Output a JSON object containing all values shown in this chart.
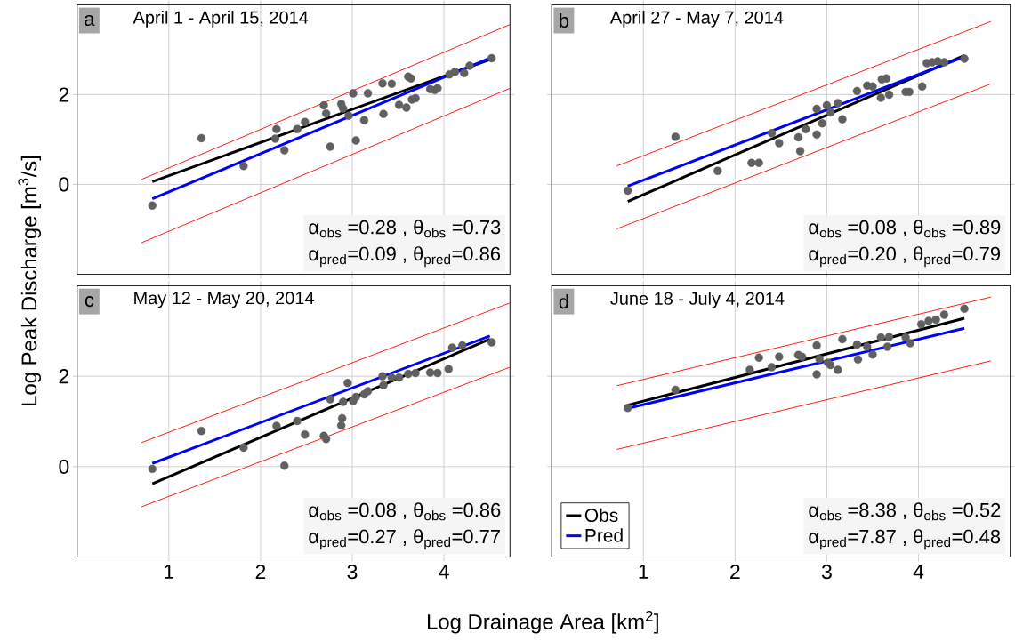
{
  "chart_data": [
    {
      "type": "scatter",
      "title": "April 1 - April 15, 2014",
      "ylabel": "Log Peak Discharge [m$^{3}$/s]",
      "annotations": [
        "a",
        "α$_{obs}$ =0.28 , θ$_{obs}$ =0.73",
        "α$_{pred}$=0.09 , θ$_{pred}$=0.86"
      ],
      "xlim": [
        0,
        4.72
      ],
      "ylim": [
        -2,
        4
      ],
      "xticks": [
        1,
        2,
        3,
        4
      ],
      "yticks": [
        0,
        2
      ],
      "grid": true,
      "tick_labels": "y",
      "series": [
        {
          "color": "#606060",
          "x": [
            0.82,
            1.355,
            1.815,
            2.174,
            2.16,
            2.26,
            2.4,
            2.484,
            2.69,
            2.715,
            2.76,
            2.88,
            2.9,
            2.96,
            3.01,
            3.04,
            3.13,
            3.17,
            3.33,
            3.34,
            3.43,
            3.51,
            3.59,
            3.61,
            3.64,
            3.65,
            3.69,
            3.85,
            3.93,
            3.9,
            4.06,
            4.12,
            4.22,
            4.28,
            4.52
          ],
          "values": [
            -0.47,
            1.03,
            0.41,
            1.23,
            1.02,
            0.76,
            1.23,
            1.39,
            1.76,
            1.58,
            0.84,
            1.79,
            1.69,
            1.53,
            2.03,
            0.98,
            1.43,
            2.03,
            2.25,
            1.57,
            2.24,
            1.77,
            1.71,
            2.4,
            2.36,
            1.89,
            1.92,
            2.12,
            2.14,
            2.1,
            2.45,
            2.51,
            2.48,
            2.64,
            2.81
          ]
        },
        {
          "type": "line",
          "color": "#ff0000",
          "x": [
            0.7,
            4.72
          ],
          "values": [
            0.11,
            3.56
          ]
        },
        {
          "type": "line",
          "color": "#ff0000",
          "x": [
            0.7,
            4.72
          ],
          "values": [
            -1.3,
            2.14
          ]
        },
        {
          "type": "line",
          "color": "#000000",
          "x": [
            0.82,
            4.5
          ],
          "values": [
            0.06,
            2.78
          ]
        },
        {
          "type": "line",
          "color": "#0000ff",
          "x": [
            0.82,
            4.5
          ],
          "values": [
            -0.32,
            2.81
          ]
        }
      ]
    },
    {
      "type": "scatter",
      "title": "April 27 - May 7, 2014",
      "annotations": [
        "b",
        "α$_{obs}$ =0.08 , θ$_{obs}$ =0.89",
        "α$_{pred}$=0.20 , θ$_{pred}$=0.79"
      ],
      "xlim": [
        0,
        5
      ],
      "ylim": [
        -2,
        4
      ],
      "xticks": [
        1,
        2,
        3,
        4
      ],
      "yticks": [
        0,
        2
      ],
      "grid": true,
      "tick_labels": false,
      "series": [
        {
          "color": "#606060",
          "x": [
            0.83,
            1.35,
            1.81,
            2.18,
            2.26,
            2.4,
            2.48,
            2.69,
            2.71,
            2.77,
            2.89,
            2.89,
            2.95,
            3.0,
            3.04,
            3.12,
            3.17,
            3.33,
            3.44,
            3.5,
            3.59,
            3.6,
            3.65,
            3.68,
            3.86,
            3.9,
            4.04,
            4.09,
            4.15,
            4.21,
            4.28,
            4.5
          ],
          "values": [
            -0.14,
            1.06,
            0.3,
            0.48,
            0.48,
            1.14,
            0.92,
            1.05,
            0.74,
            1.23,
            1.11,
            1.68,
            1.36,
            1.76,
            1.6,
            1.81,
            1.45,
            2.08,
            2.2,
            2.18,
            1.93,
            2.34,
            2.36,
            2.0,
            2.06,
            2.06,
            2.18,
            2.7,
            2.72,
            2.74,
            2.72,
            2.8
          ]
        },
        {
          "type": "line",
          "color": "#ff0000",
          "x": [
            0.71,
            4.79
          ],
          "values": [
            0.41,
            3.63
          ]
        },
        {
          "type": "line",
          "color": "#ff0000",
          "x": [
            0.71,
            4.79
          ],
          "values": [
            -0.99,
            2.24
          ]
        },
        {
          "type": "line",
          "color": "#000000",
          "x": [
            0.83,
            4.5
          ],
          "values": [
            -0.38,
            2.87
          ]
        },
        {
          "type": "line",
          "color": "#0000ff",
          "x": [
            0.83,
            4.5
          ],
          "values": [
            -0.04,
            2.84
          ]
        }
      ]
    },
    {
      "type": "scatter",
      "title": "May 12 - May 20, 2014",
      "xlabel": "Log Drainage Area [km$^{2}$]",
      "annotations": [
        "c",
        "α$_{obs}$ =0.08 , θ$_{obs}$ =0.86",
        "α$_{pred}$=0.27 , θ$_{pred}$=0.77"
      ],
      "xlim": [
        0,
        4.72
      ],
      "ylim": [
        -2,
        4
      ],
      "xticks": [
        1,
        2,
        3,
        4
      ],
      "yticks": [
        0,
        2
      ],
      "grid": true,
      "series": [
        {
          "color": "#606060",
          "x": [
            0.82,
            1.355,
            1.815,
            2.174,
            2.26,
            2.4,
            2.484,
            2.69,
            2.715,
            2.76,
            2.88,
            2.89,
            2.9,
            2.95,
            3.01,
            3.04,
            3.13,
            3.17,
            3.33,
            3.34,
            3.43,
            3.51,
            3.61,
            3.69,
            3.85,
            3.93,
            4.05,
            4.09,
            4.2,
            4.52
          ],
          "values": [
            -0.05,
            0.79,
            0.42,
            0.9,
            0.02,
            1.01,
            0.71,
            0.68,
            0.61,
            1.49,
            0.91,
            1.07,
            1.43,
            1.85,
            1.45,
            1.54,
            1.6,
            1.67,
            2.0,
            1.8,
            1.97,
            1.97,
            2.05,
            2.07,
            2.08,
            2.07,
            2.16,
            2.63,
            2.68,
            2.75
          ]
        },
        {
          "type": "line",
          "color": "#ff0000",
          "x": [
            0.7,
            4.72
          ],
          "values": [
            0.53,
            3.62
          ]
        },
        {
          "type": "line",
          "color": "#ff0000",
          "x": [
            0.7,
            4.72
          ],
          "values": [
            -0.89,
            2.2
          ]
        },
        {
          "type": "line",
          "color": "#000000",
          "x": [
            0.82,
            4.5
          ],
          "values": [
            -0.38,
            2.82
          ]
        },
        {
          "type": "line",
          "color": "#0000ff",
          "x": [
            0.82,
            4.5
          ],
          "values": [
            0.07,
            2.89
          ]
        }
      ]
    },
    {
      "type": "scatter",
      "title": "June 18 - July 4, 2014",
      "annotations": [
        "d",
        "α$_{obs}$ =8.38 , θ$_{obs}$ =0.52",
        "α$_{pred}$=7.87 , θ$_{pred}$=0.48"
      ],
      "xlim": [
        0,
        5
      ],
      "ylim": [
        -2,
        4
      ],
      "xticks": [
        1,
        2,
        3,
        4
      ],
      "yticks": [
        0,
        2
      ],
      "grid": true,
      "tick_labels": "x",
      "legend": "bottom left",
      "series": [
        {
          "color": "#606060",
          "x": [
            0.83,
            1.35,
            2.16,
            2.26,
            2.4,
            2.48,
            2.69,
            2.73,
            2.89,
            2.89,
            2.92,
            3.01,
            3.04,
            3.12,
            3.17,
            3.33,
            3.34,
            3.44,
            3.5,
            3.59,
            3.66,
            3.68,
            3.86,
            3.91,
            4.03,
            4.11,
            4.19,
            4.28,
            4.5
          ],
          "values": [
            1.3,
            1.7,
            2.14,
            2.41,
            2.2,
            2.43,
            2.47,
            2.43,
            2.68,
            2.04,
            2.38,
            2.3,
            2.25,
            2.14,
            2.82,
            2.7,
            2.37,
            2.65,
            2.48,
            2.86,
            2.65,
            2.87,
            2.86,
            2.73,
            3.15,
            3.22,
            3.25,
            3.36,
            3.49
          ]
        },
        {
          "type": "line",
          "color": "#ff0000",
          "x": [
            0.71,
            4.79
          ],
          "values": [
            1.79,
            3.75
          ]
        },
        {
          "type": "line",
          "color": "#ff0000",
          "x": [
            0.71,
            4.79
          ],
          "values": [
            0.38,
            2.34
          ]
        },
        {
          "type": "line",
          "name": "Obs",
          "color": "#000000",
          "x": [
            0.83,
            4.5
          ],
          "values": [
            1.36,
            3.28
          ]
        },
        {
          "type": "line",
          "name": "Pred",
          "color": "#0000ff",
          "x": [
            0.83,
            4.5
          ],
          "values": [
            1.29,
            3.06
          ]
        }
      ]
    }
  ]
}
